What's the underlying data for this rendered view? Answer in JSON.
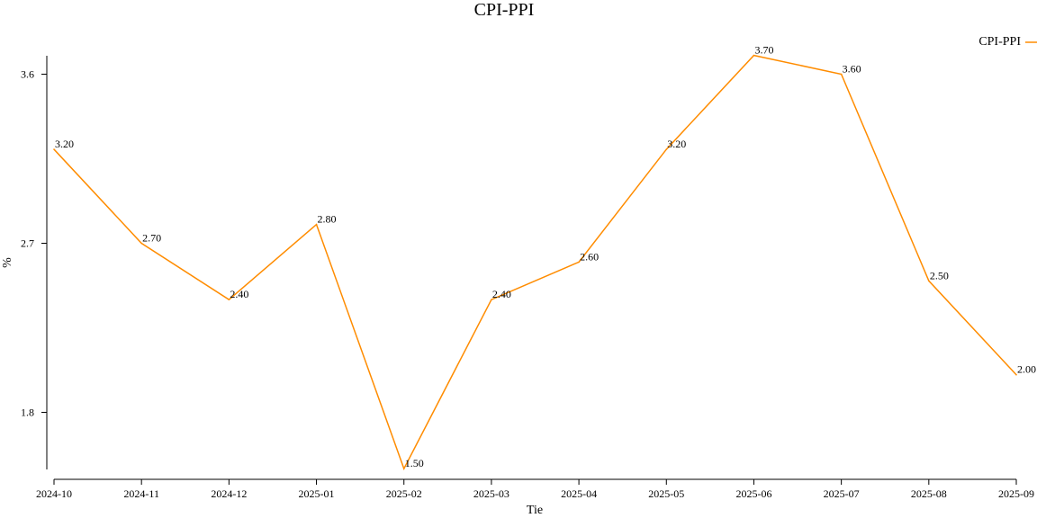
{
  "chart_data": {
    "type": "line",
    "title": "CPI-PPI",
    "xlabel": "Tie",
    "ylabel": "%",
    "categories": [
      "2024-10",
      "2024-11",
      "2024-12",
      "2025-01",
      "2025-02",
      "2025-03",
      "2025-04",
      "2025-05",
      "2025-06",
      "2025-07",
      "2025-08",
      "2025-09"
    ],
    "series": [
      {
        "name": "CPI-PPI",
        "color": "#ff8c00",
        "values": [
          3.2,
          2.7,
          2.4,
          2.8,
          1.5,
          2.4,
          2.6,
          3.2,
          3.7,
          3.6,
          2.5,
          2.0
        ],
        "labels": [
          "3.20",
          "2.70",
          "2.40",
          "2.80",
          "1.50",
          "2.40",
          "2.60",
          "3.20",
          "3.70",
          "3.60",
          "2.50",
          "2.00"
        ]
      }
    ],
    "yticks": [
      1.8,
      2.7,
      3.6
    ],
    "ytick_labels": [
      "1.8",
      "2.7",
      "3.6"
    ],
    "ylim": [
      1.5,
      3.7
    ],
    "grid": false,
    "legend_position": "top-right"
  }
}
